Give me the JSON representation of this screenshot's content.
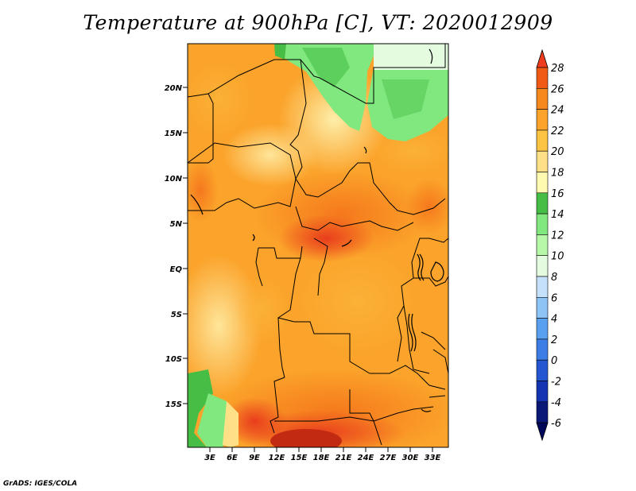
{
  "title": "Temperature at 900hPa [C], VT: 2020012909",
  "credit": "GrADS: IGES/COLA",
  "map": {
    "lat_labels": [
      "20N",
      "15N",
      "10N",
      "5N",
      "EQ",
      "5S",
      "10S",
      "15S"
    ],
    "lon_labels": [
      "3E",
      "6E",
      "9E",
      "12E",
      "15E",
      "18E",
      "21E",
      "24E",
      "27E",
      "30E",
      "33E"
    ]
  },
  "colorbar": {
    "labels": [
      "28",
      "26",
      "24",
      "22",
      "20",
      "18",
      "16",
      "14",
      "12",
      "10",
      "8",
      "6",
      "4",
      "2",
      "0",
      "-2",
      "-4",
      "-6"
    ],
    "colors": [
      "#f03c1e",
      "#f05a14",
      "#f7881e",
      "#fba32a",
      "#fcc442",
      "#fee186",
      "#fefab0",
      "#46be46",
      "#80e87e",
      "#b6f7a8",
      "#e4fbe0",
      "#c4e0fa",
      "#8cc4f5",
      "#5aa0f0",
      "#3c7ee6",
      "#2456d2",
      "#1434b4",
      "#0a1878",
      "#00085a"
    ]
  }
}
